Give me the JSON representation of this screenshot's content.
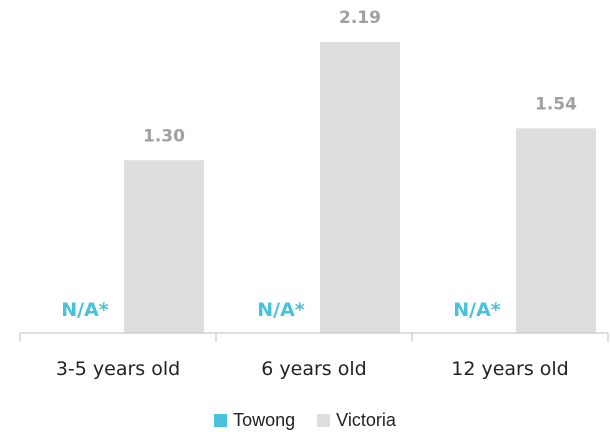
{
  "colors": {
    "towong": "#47c1dc",
    "victoria": "#dedede",
    "value_label": "#a0a0a0",
    "na_label": "#47c1dc",
    "axis": "#bfbfbf",
    "text": "#222222"
  },
  "chart_data": {
    "type": "bar",
    "categories": [
      "3-5 years old",
      "6 years old",
      "12 years old"
    ],
    "series": [
      {
        "name": "Towong",
        "values": [
          null,
          null,
          null
        ],
        "labels": [
          "N/A*",
          "N/A*",
          "N/A*"
        ]
      },
      {
        "name": "Victoria",
        "values": [
          1.3,
          2.19,
          1.54
        ],
        "labels": [
          "1.30",
          "2.19",
          "1.54"
        ]
      }
    ],
    "title": "",
    "xlabel": "",
    "ylabel": "",
    "ylim": [
      0,
      2.19
    ],
    "grid": false,
    "legend": "bottom"
  }
}
